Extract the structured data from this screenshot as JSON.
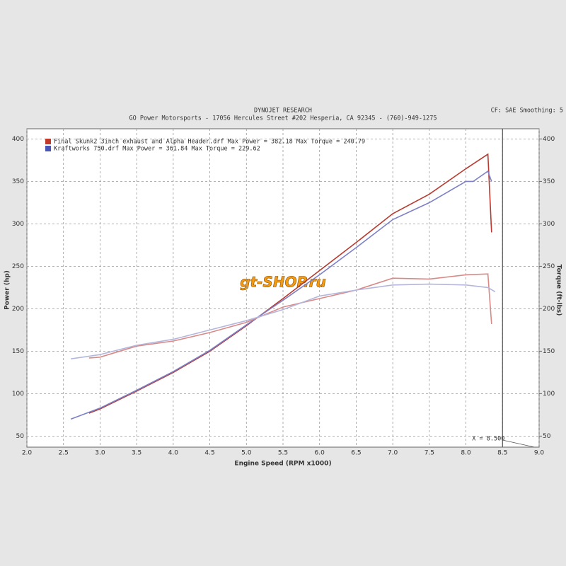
{
  "chart_data": {
    "type": "line",
    "title": "DYNOJET RESEARCH",
    "subtitle": "GO Power Motorsports - 17056 Hercules Street #202 Hesperia, CA 92345 - (760)-949-1275",
    "settings_label": "CF: SAE  Smoothing: 5",
    "watermark": "gt-SHOP.ru",
    "x_label": "Engine Speed (RPM x1000)",
    "y_label": "Power (hp)",
    "y2_label": "Torque (ft-lbs)",
    "xlim": [
      2,
      9
    ],
    "xticks": [
      {
        "value": 2,
        "label": "2.0"
      },
      {
        "value": 2.5,
        "label": "2.5"
      },
      {
        "value": 3,
        "label": "3.0"
      },
      {
        "value": 3.5,
        "label": "3.5"
      },
      {
        "value": 4,
        "label": "4.0"
      },
      {
        "value": 4.5,
        "label": "4.5"
      },
      {
        "value": 5,
        "label": "5.0"
      },
      {
        "value": 5.5,
        "label": "5.5"
      },
      {
        "value": 6,
        "label": "6.0"
      },
      {
        "value": 6.5,
        "label": "6.5"
      },
      {
        "value": 7,
        "label": "7.0"
      },
      {
        "value": 7.5,
        "label": "7.5"
      },
      {
        "value": 8,
        "label": "8.0"
      },
      {
        "value": 8.5,
        "label": "8.5"
      },
      {
        "value": 9,
        "label": "9.0"
      }
    ],
    "ylim": [
      37,
      412
    ],
    "yticks": [
      50,
      100,
      150,
      200,
      250,
      300,
      350,
      400
    ],
    "y2lim": [
      37,
      412
    ],
    "y2ticks": [
      50,
      100,
      150,
      200,
      250,
      300,
      350,
      400
    ],
    "grid": true,
    "legend": [
      {
        "text": "Final Skunk2 3inch exhaust and Alpha Header.drf Max Power = 382.18 Max Torque = 240.79",
        "color": "#c0392b"
      },
      {
        "text": "Kraftworks 750.drf Max Power = 361.84 Max Torque = 229.62",
        "color": "#4a55b8"
      }
    ],
    "cursor": {
      "value": 8.5,
      "label": "X = 8.500"
    },
    "series": [
      {
        "color": "#b83a30",
        "axis": "y",
        "x": [
          2.85,
          3,
          3.5,
          4,
          4.5,
          5,
          5.5,
          6,
          6.5,
          7,
          7.5,
          8,
          8.3,
          8.35
        ],
        "values": [
          77,
          82,
          103,
          125,
          150,
          180,
          212,
          245,
          278,
          312,
          335,
          365,
          382,
          290
        ]
      },
      {
        "color": "#7d80c8",
        "axis": "y",
        "x": [
          2.6,
          3,
          3.5,
          4,
          4.5,
          5,
          5.5,
          6,
          6.5,
          7,
          7.5,
          8,
          8.1,
          8.3,
          8.35
        ],
        "values": [
          70,
          83,
          104,
          126,
          151,
          181,
          210,
          240,
          272,
          305,
          325,
          350,
          350,
          362,
          350
        ]
      },
      {
        "color": "#d98a86",
        "axis": "y2",
        "x": [
          2.85,
          3,
          3.5,
          4,
          4.5,
          5,
          5.5,
          6,
          6.5,
          7,
          7.5,
          8,
          8.3,
          8.35
        ],
        "values": [
          142,
          143,
          156,
          162,
          172,
          184,
          202,
          212,
          222,
          236,
          235,
          240,
          241,
          182
        ]
      },
      {
        "color": "#b4b6dc",
        "axis": "y2",
        "x": [
          2.6,
          3,
          3.5,
          4,
          4.5,
          5,
          5.5,
          6,
          6.5,
          7,
          7.5,
          8,
          8.3,
          8.4
        ],
        "values": [
          141,
          146,
          157,
          164,
          175,
          186,
          199,
          215,
          222,
          228,
          229,
          228,
          225,
          220
        ]
      }
    ]
  }
}
